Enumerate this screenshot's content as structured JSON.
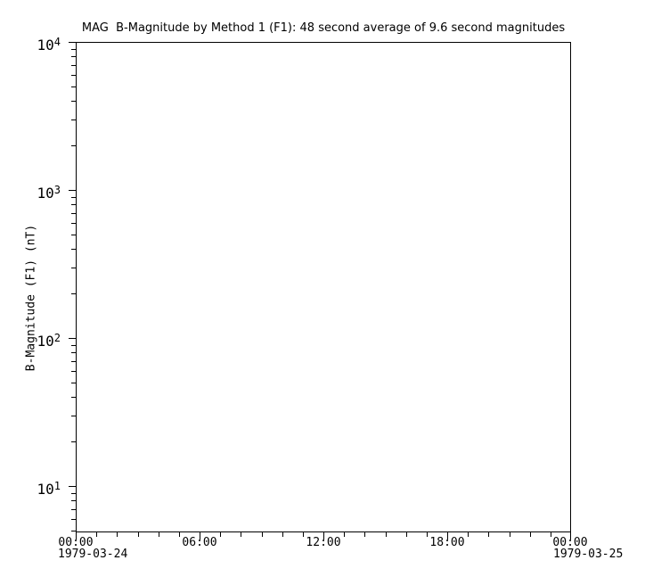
{
  "colors": {
    "foreground": "#000000",
    "background": "#ffffff"
  },
  "chart_data": {
    "type": "line",
    "title": "MAG  B-Magnitude by Method 1 (F1): 48 second average of 9.6 second magnitudes",
    "xlabel": "",
    "ylabel": "B-Magnitude (F1) (nT)",
    "grid": false,
    "legend": null,
    "x_axis": {
      "scale": "time",
      "range_hours": [
        0,
        24
      ],
      "major_tick_hours": [
        0,
        6,
        12,
        18,
        24
      ],
      "major_tick_labels": [
        "00:00",
        "06:00",
        "12:00",
        "18:00",
        "00:00"
      ],
      "minor_tick_interval_hours": 1,
      "start_date": "1979-03-24",
      "end_date": "1979-03-25"
    },
    "y_axis": {
      "scale": "log",
      "ylim_log10": [
        0.687,
        4
      ],
      "major_ticks": [
        {
          "value": 10,
          "base": "10",
          "exponent": "1"
        },
        {
          "value": 100,
          "base": "10",
          "exponent": "2"
        },
        {
          "value": 1000,
          "base": "10",
          "exponent": "3"
        },
        {
          "value": 10000,
          "base": "10",
          "exponent": "4"
        }
      ],
      "minor_tick_mantissas": [
        2,
        3,
        4,
        5,
        6,
        7,
        8,
        9
      ]
    },
    "series": []
  }
}
